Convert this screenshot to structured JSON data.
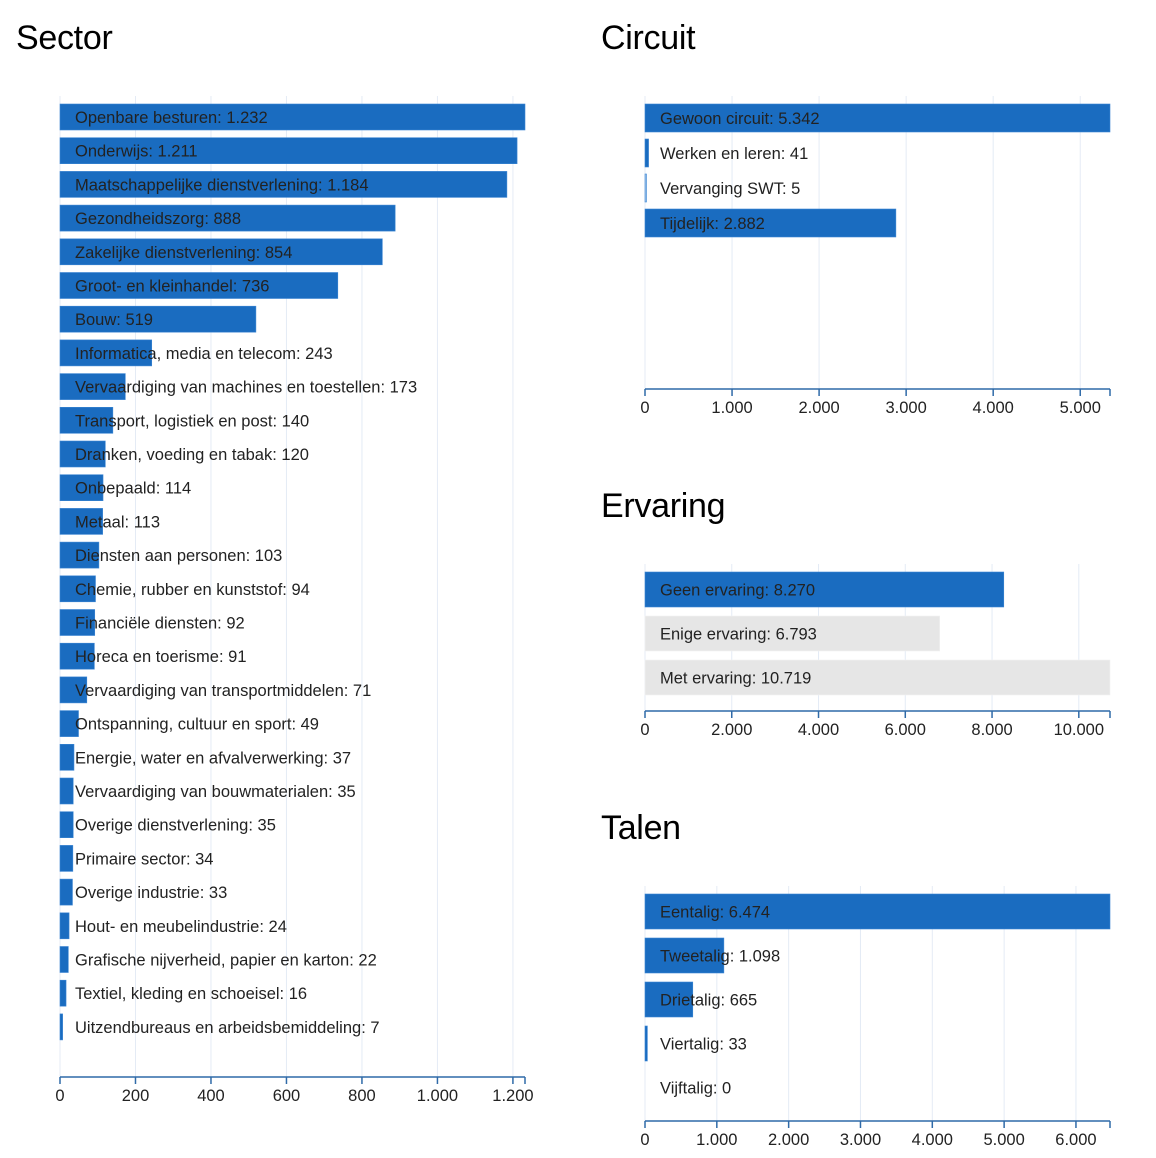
{
  "colors": {
    "bar_blue": "#1a6cc0",
    "bar_blue_light": "#9fc4ea",
    "bar_gray": "#e6e6e6",
    "axis": "#2f6aa8",
    "grid": "#e4ebf5"
  },
  "chart_data": [
    {
      "id": "sector",
      "type": "bar",
      "orientation": "horizontal",
      "title": "Sector",
      "xlabel": "",
      "ylabel": "",
      "xlim": [
        0,
        1232
      ],
      "xticks": [
        0,
        200,
        400,
        600,
        800,
        1000,
        1200
      ],
      "xtick_labels": [
        "0",
        "200",
        "400",
        "600",
        "800",
        "1.000",
        "1.200"
      ],
      "grid": true,
      "categories": [
        "Openbare besturen",
        "Onderwijs",
        "Maatschappelijke dienstverlening",
        "Gezondheidszorg",
        "Zakelijke dienstverlening",
        "Groot- en kleinhandel",
        "Bouw",
        "Informatica, media en telecom",
        "Vervaardiging van machines en toestellen",
        "Transport, logistiek en post",
        "Dranken, voeding en tabak",
        "Onbepaald",
        "Metaal",
        "Diensten aan personen",
        "Chemie, rubber en kunststof",
        "Financiële diensten",
        "Horeca en toerisme",
        "Vervaardiging van transportmiddelen",
        "Ontspanning, cultuur en sport",
        "Energie, water en afvalverwerking",
        "Vervaardiging van bouwmaterialen",
        "Overige dienstverlening",
        "Primaire sector",
        "Overige industrie",
        "Hout- en meubelindustrie",
        "Grafische nijverheid, papier en karton",
        "Textiel, kleding en schoeisel",
        "Uitzendbureaus en arbeidsbemiddeling"
      ],
      "values": [
        1232,
        1211,
        1184,
        888,
        854,
        736,
        519,
        243,
        173,
        140,
        120,
        114,
        113,
        103,
        94,
        92,
        91,
        71,
        49,
        37,
        35,
        35,
        34,
        33,
        24,
        22,
        16,
        7
      ],
      "labels": [
        "Openbare besturen: 1.232",
        "Onderwijs: 1.211",
        "Maatschappelijke dienstverlening: 1.184",
        "Gezondheidszorg: 888",
        "Zakelijke dienstverlening: 854",
        "Groot- en kleinhandel: 736",
        "Bouw: 519",
        "Informatica, media en telecom: 243",
        "Vervaardiging van machines en toestellen: 173",
        "Transport, logistiek en post: 140",
        "Dranken, voeding en tabak: 120",
        "Onbepaald: 114",
        "Metaal: 113",
        "Diensten aan personen: 103",
        "Chemie, rubber en kunststof: 94",
        "Financiële diensten: 92",
        "Horeca en toerisme: 91",
        "Vervaardiging van transportmiddelen: 71",
        "Ontspanning, cultuur en sport: 49",
        "Energie, water en afvalverwerking: 37",
        "Vervaardiging van bouwmaterialen: 35",
        "Overige dienstverlening: 35",
        "Primaire sector: 34",
        "Overige industrie: 33",
        "Hout- en meubelindustrie: 24",
        "Grafische nijverheid, papier en karton: 22",
        "Textiel, kleding en schoeisel: 16",
        "Uitzendbureaus en arbeidsbemiddeling: 7"
      ],
      "bar_colors": [
        "blue"
      ]
    },
    {
      "id": "circuit",
      "type": "bar",
      "orientation": "horizontal",
      "title": "Circuit",
      "xlabel": "",
      "ylabel": "",
      "xlim": [
        0,
        5342
      ],
      "xticks": [
        0,
        1000,
        2000,
        3000,
        4000,
        5000
      ],
      "xtick_labels": [
        "0",
        "1.000",
        "2.000",
        "3.000",
        "4.000",
        "5.000"
      ],
      "grid": true,
      "categories": [
        "Gewoon circuit",
        "Werken en leren",
        "Vervanging SWT",
        "Tijdelijk"
      ],
      "values": [
        5342,
        41,
        5,
        2882
      ],
      "labels": [
        "Gewoon circuit: 5.342",
        "Werken en leren: 41",
        "Vervanging SWT: 5",
        "Tijdelijk: 2.882"
      ],
      "bar_colors": [
        "blue",
        "blue",
        "blue_light",
        "blue"
      ]
    },
    {
      "id": "ervaring",
      "type": "bar",
      "orientation": "horizontal",
      "title": "Ervaring",
      "xlabel": "",
      "ylabel": "",
      "xlim": [
        0,
        10719
      ],
      "xticks": [
        0,
        2000,
        4000,
        6000,
        8000,
        10000
      ],
      "xtick_labels": [
        "0",
        "2.000",
        "4.000",
        "6.000",
        "8.000",
        "10.000"
      ],
      "grid": true,
      "categories": [
        "Geen ervaring",
        "Enige ervaring",
        "Met ervaring"
      ],
      "values": [
        8270,
        6793,
        10719
      ],
      "labels": [
        "Geen ervaring: 8.270",
        "Enige ervaring: 6.793",
        "Met ervaring: 10.719"
      ],
      "bar_colors": [
        "blue",
        "gray",
        "gray"
      ]
    },
    {
      "id": "talen",
      "type": "bar",
      "orientation": "horizontal",
      "title": "Talen",
      "xlabel": "",
      "ylabel": "",
      "xlim": [
        0,
        6474
      ],
      "xticks": [
        0,
        1000,
        2000,
        3000,
        4000,
        5000,
        6000
      ],
      "xtick_labels": [
        "0",
        "1.000",
        "2.000",
        "3.000",
        "4.000",
        "5.000",
        "6.000"
      ],
      "grid": true,
      "categories": [
        "Eentalig",
        "Tweetalig",
        "Drietalig",
        "Viertalig",
        "Vijftalig"
      ],
      "values": [
        6474,
        1098,
        665,
        33,
        0
      ],
      "labels": [
        "Eentalig: 6.474",
        "Tweetalig: 1.098",
        "Drietalig: 665",
        "Viertalig: 33",
        "Vijftalig: 0"
      ],
      "bar_colors": [
        "blue"
      ]
    }
  ]
}
